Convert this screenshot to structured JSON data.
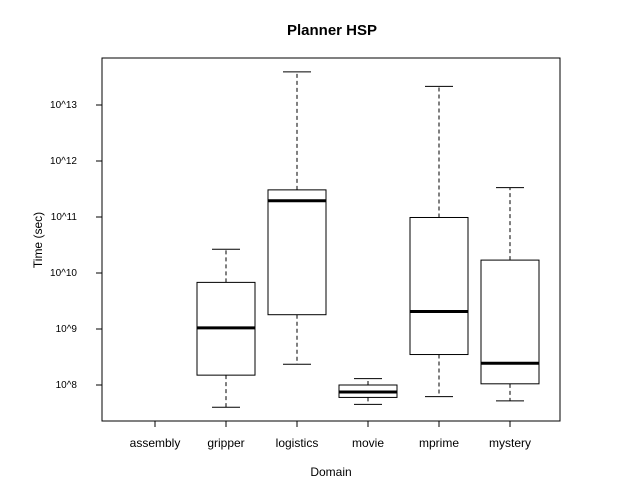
{
  "chart_data": {
    "type": "box",
    "title": "Planner HSP",
    "xlabel": "Domain",
    "ylabel": "Time (sec)",
    "y_scale": "log10",
    "ylim": [
      10000000.0,
      100000000000000.0
    ],
    "yticks": [
      {
        "value": 100000000.0,
        "label": "10^8"
      },
      {
        "value": 1000000000.0,
        "label": "10^9"
      },
      {
        "value": 10000000000.0,
        "label": "10^10"
      },
      {
        "value": 100000000000.0,
        "label": "10^11"
      },
      {
        "value": 1000000000000.0,
        "label": "10^12"
      },
      {
        "value": 10000000000000.0,
        "label": "10^13"
      }
    ],
    "categories": [
      "assembly",
      "gripper",
      "logistics",
      "movie",
      "mprime",
      "mystery"
    ],
    "boxes": [
      null,
      {
        "min": 40000000.0,
        "q1": 150000000.0,
        "median": 1050000000.0,
        "q3": 6800000000.0,
        "max": 26500000000.0
      },
      {
        "min": 235000000.0,
        "q1": 1800000000.0,
        "median": 195000000000.0,
        "q3": 305000000000.0,
        "max": 39000000000000.0
      },
      {
        "min": 45000000.0,
        "q1": 60000000.0,
        "median": 75000000.0,
        "q3": 100000000.0,
        "max": 130000000.0
      },
      {
        "min": 62000000.0,
        "q1": 350000000.0,
        "median": 2050000000.0,
        "q3": 98000000000.0,
        "max": 21500000000000.0
      },
      {
        "min": 52000000.0,
        "q1": 105000000.0,
        "median": 245000000.0,
        "q3": 17000000000.0,
        "max": 335000000000.0
      }
    ],
    "grid": false,
    "legend": "none"
  }
}
